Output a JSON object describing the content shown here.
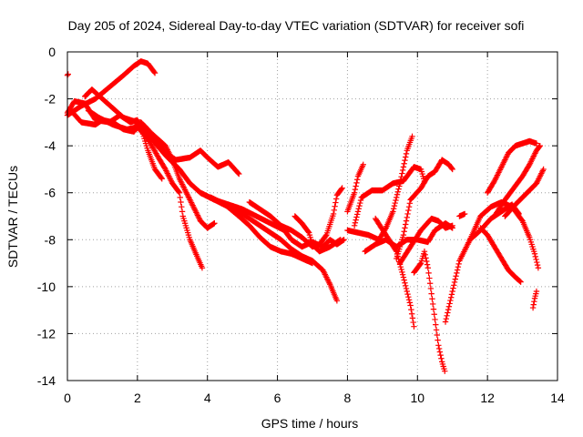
{
  "chart_data": {
    "type": "scatter",
    "title": "Day 205 of 2024, Sidereal Day-to-day VTEC variation (SDTVAR) for receiver sofi",
    "xlabel": "GPS time / hours",
    "ylabel": "SDTVAR / TECUs",
    "xlim": [
      0,
      14
    ],
    "ylim": [
      -14,
      0
    ],
    "xticks": [
      0,
      2,
      4,
      6,
      8,
      10,
      12,
      14
    ],
    "yticks": [
      0,
      -2,
      -4,
      -6,
      -8,
      -10,
      -12,
      -14
    ],
    "grid": true,
    "legend": "none",
    "marker": "+",
    "color": "#ff0000",
    "tracks": [
      [
        [
          0.0,
          -1.0
        ],
        [
          0.02,
          -0.95
        ]
      ],
      [
        [
          0.0,
          -2.7
        ],
        [
          0.4,
          -2.3
        ],
        [
          0.8,
          -2.0
        ],
        [
          1.2,
          -1.5
        ],
        [
          1.6,
          -1.0
        ],
        [
          1.9,
          -0.6
        ],
        [
          2.1,
          -0.4
        ],
        [
          2.3,
          -0.5
        ],
        [
          2.5,
          -0.9
        ]
      ],
      [
        [
          0.0,
          -2.6
        ],
        [
          0.2,
          -2.1
        ],
        [
          0.5,
          -2.2
        ],
        [
          0.8,
          -2.9
        ],
        [
          1.2,
          -3.0
        ],
        [
          1.5,
          -2.7
        ],
        [
          1.8,
          -3.0
        ],
        [
          2.0,
          -2.9
        ],
        [
          2.1,
          -3.2
        ],
        [
          2.3,
          -4.2
        ],
        [
          2.5,
          -5.0
        ],
        [
          2.7,
          -5.4
        ]
      ],
      [
        [
          0.1,
          -2.5
        ],
        [
          0.4,
          -3.0
        ],
        [
          0.8,
          -3.1
        ],
        [
          1.0,
          -2.9
        ],
        [
          1.3,
          -3.0
        ],
        [
          1.6,
          -3.3
        ],
        [
          1.9,
          -3.4
        ],
        [
          2.1,
          -3.0
        ],
        [
          2.3,
          -3.3
        ],
        [
          2.5,
          -3.7
        ],
        [
          2.8,
          -4.3
        ],
        [
          3.1,
          -4.6
        ],
        [
          3.5,
          -4.5
        ],
        [
          3.8,
          -4.2
        ],
        [
          4.0,
          -4.5
        ],
        [
          4.3,
          -4.9
        ],
        [
          4.6,
          -4.7
        ],
        [
          4.9,
          -5.2
        ]
      ],
      [
        [
          0.5,
          -1.9
        ],
        [
          0.7,
          -1.6
        ],
        [
          1.0,
          -2.0
        ],
        [
          1.3,
          -2.4
        ],
        [
          1.6,
          -2.8
        ],
        [
          2.0,
          -3.0
        ],
        [
          2.2,
          -3.2
        ],
        [
          2.5,
          -3.6
        ],
        [
          2.8,
          -4.0
        ],
        [
          3.0,
          -4.6
        ],
        [
          3.2,
          -5.4
        ],
        [
          3.4,
          -6.0
        ],
        [
          3.6,
          -6.6
        ],
        [
          3.8,
          -7.2
        ],
        [
          4.0,
          -7.5
        ],
        [
          4.2,
          -7.3
        ]
      ],
      [
        [
          0.6,
          -2.5
        ],
        [
          0.9,
          -2.8
        ],
        [
          1.3,
          -3.1
        ],
        [
          1.7,
          -3.3
        ],
        [
          2.0,
          -3.2
        ],
        [
          2.3,
          -3.7
        ],
        [
          2.6,
          -4.5
        ],
        [
          2.8,
          -5.0
        ],
        [
          3.0,
          -5.6
        ],
        [
          3.2,
          -6.0
        ],
        [
          3.3,
          -7.0
        ],
        [
          3.5,
          -8.0
        ],
        [
          3.7,
          -8.7
        ],
        [
          3.85,
          -9.2
        ]
      ],
      [
        [
          2.0,
          -3.1
        ],
        [
          2.4,
          -3.7
        ],
        [
          2.8,
          -4.4
        ],
        [
          3.2,
          -5.0
        ],
        [
          3.5,
          -5.6
        ],
        [
          3.8,
          -6.0
        ],
        [
          4.2,
          -6.3
        ],
        [
          4.6,
          -6.6
        ],
        [
          5.0,
          -6.9
        ],
        [
          5.4,
          -7.3
        ],
        [
          5.8,
          -7.7
        ],
        [
          6.1,
          -8.0
        ],
        [
          6.4,
          -8.4
        ],
        [
          6.7,
          -8.7
        ],
        [
          7.0,
          -8.9
        ],
        [
          7.3,
          -9.3
        ],
        [
          7.5,
          -9.9
        ],
        [
          7.7,
          -10.6
        ]
      ],
      [
        [
          3.8,
          -6.0
        ],
        [
          4.2,
          -6.3
        ],
        [
          4.6,
          -6.5
        ],
        [
          5.0,
          -6.7
        ],
        [
          5.4,
          -7.0
        ],
        [
          5.8,
          -7.3
        ],
        [
          6.2,
          -7.6
        ],
        [
          6.4,
          -8.0
        ],
        [
          6.7,
          -8.3
        ],
        [
          7.0,
          -8.1
        ],
        [
          7.3,
          -8.3
        ],
        [
          7.5,
          -8.0
        ],
        [
          7.7,
          -8.2
        ],
        [
          7.9,
          -8.0
        ]
      ],
      [
        [
          4.1,
          -6.2
        ],
        [
          4.5,
          -6.5
        ],
        [
          4.9,
          -7.0
        ],
        [
          5.2,
          -7.4
        ],
        [
          5.5,
          -7.9
        ],
        [
          5.8,
          -8.3
        ],
        [
          6.1,
          -8.5
        ],
        [
          6.4,
          -8.6
        ],
        [
          6.7,
          -8.8
        ],
        [
          7.0,
          -9.0
        ]
      ],
      [
        [
          5.2,
          -6.4
        ],
        [
          5.5,
          -6.7
        ],
        [
          5.8,
          -7.0
        ],
        [
          6.1,
          -7.4
        ],
        [
          6.4,
          -7.6
        ],
        [
          6.7,
          -7.9
        ],
        [
          7.0,
          -8.3
        ],
        [
          7.2,
          -8.2
        ],
        [
          7.4,
          -7.8
        ],
        [
          7.6,
          -6.9
        ],
        [
          7.7,
          -6.1
        ],
        [
          7.85,
          -5.8
        ]
      ],
      [
        [
          6.5,
          -7.0
        ],
        [
          6.7,
          -7.3
        ],
        [
          6.9,
          -7.7
        ],
        [
          7.0,
          -8.2
        ],
        [
          7.2,
          -8.5
        ],
        [
          7.5,
          -8.3
        ],
        [
          7.8,
          -8.0
        ]
      ],
      [
        [
          8.0,
          -7.6
        ],
        [
          8.3,
          -7.7
        ],
        [
          8.6,
          -7.8
        ],
        [
          8.9,
          -8.0
        ],
        [
          9.1,
          -7.5
        ],
        [
          9.3,
          -6.8
        ],
        [
          9.5,
          -5.6
        ],
        [
          9.7,
          -4.2
        ],
        [
          9.85,
          -3.6
        ]
      ],
      [
        [
          8.0,
          -6.8
        ],
        [
          8.2,
          -6.0
        ],
        [
          8.3,
          -5.3
        ],
        [
          8.45,
          -4.8
        ]
      ],
      [
        [
          8.2,
          -7.4
        ],
        [
          8.4,
          -6.2
        ],
        [
          8.7,
          -5.9
        ],
        [
          9.0,
          -5.9
        ],
        [
          9.3,
          -5.6
        ],
        [
          9.6,
          -5.5
        ],
        [
          9.9,
          -4.9
        ],
        [
          10.1,
          -5.0
        ],
        [
          10.2,
          -5.5
        ]
      ],
      [
        [
          8.8,
          -7.1
        ],
        [
          9.1,
          -7.8
        ],
        [
          9.4,
          -8.5
        ],
        [
          9.6,
          -9.6
        ],
        [
          9.8,
          -10.8
        ],
        [
          9.9,
          -11.7
        ]
      ],
      [
        [
          8.5,
          -8.5
        ],
        [
          8.8,
          -8.2
        ],
        [
          9.1,
          -8.0
        ],
        [
          9.4,
          -8.3
        ],
        [
          9.7,
          -8.0
        ],
        [
          10.0,
          -8.0
        ],
        [
          10.3,
          -8.1
        ],
        [
          10.5,
          -7.6
        ],
        [
          10.8,
          -7.3
        ],
        [
          11.0,
          -7.5
        ]
      ],
      [
        [
          9.4,
          -8.8
        ],
        [
          9.6,
          -7.8
        ],
        [
          9.8,
          -6.3
        ],
        [
          10.1,
          -5.8
        ],
        [
          10.3,
          -5.3
        ],
        [
          10.5,
          -5.1
        ],
        [
          10.7,
          -4.6
        ],
        [
          10.9,
          -4.8
        ],
        [
          11.0,
          -5.0
        ]
      ],
      [
        [
          9.5,
          -9.0
        ],
        [
          9.8,
          -8.3
        ],
        [
          10.1,
          -7.6
        ],
        [
          10.4,
          -7.1
        ],
        [
          10.6,
          -7.2
        ],
        [
          10.8,
          -7.5
        ],
        [
          11.0,
          -7.4
        ]
      ],
      [
        [
          9.9,
          -9.4
        ],
        [
          10.1,
          -9.0
        ],
        [
          10.2,
          -8.5
        ],
        [
          10.3,
          -9.2
        ],
        [
          10.4,
          -10.3
        ],
        [
          10.5,
          -11.4
        ],
        [
          10.6,
          -12.5
        ],
        [
          10.7,
          -13.2
        ],
        [
          10.78,
          -13.6
        ]
      ],
      [
        [
          11.2,
          -7.0
        ],
        [
          11.35,
          -6.9
        ]
      ],
      [
        [
          10.8,
          -11.5
        ],
        [
          11.0,
          -10.2
        ],
        [
          11.2,
          -8.9
        ],
        [
          11.5,
          -8.0
        ],
        [
          11.8,
          -7.6
        ],
        [
          12.1,
          -7.1
        ],
        [
          12.4,
          -6.8
        ],
        [
          12.7,
          -6.5
        ],
        [
          12.9,
          -6.9
        ]
      ],
      [
        [
          11.5,
          -8.0
        ],
        [
          11.8,
          -7.0
        ],
        [
          12.1,
          -6.6
        ],
        [
          12.4,
          -6.4
        ],
        [
          12.7,
          -6.6
        ],
        [
          13.0,
          -7.2
        ],
        [
          13.2,
          -7.9
        ],
        [
          13.35,
          -8.6
        ],
        [
          13.45,
          -9.2
        ]
      ],
      [
        [
          11.8,
          -7.5
        ],
        [
          12.0,
          -7.8
        ],
        [
          12.2,
          -8.3
        ],
        [
          12.4,
          -8.8
        ],
        [
          12.6,
          -9.3
        ],
        [
          12.8,
          -9.6
        ],
        [
          12.95,
          -9.8
        ]
      ],
      [
        [
          12.0,
          -6.0
        ],
        [
          12.2,
          -5.5
        ],
        [
          12.4,
          -4.9
        ],
        [
          12.6,
          -4.3
        ],
        [
          12.8,
          -4.0
        ],
        [
          13.0,
          -3.9
        ],
        [
          13.2,
          -3.8
        ],
        [
          13.4,
          -3.9
        ]
      ],
      [
        [
          12.2,
          -7.0
        ],
        [
          12.5,
          -6.3
        ],
        [
          12.8,
          -5.7
        ],
        [
          13.0,
          -5.3
        ],
        [
          13.2,
          -4.8
        ],
        [
          13.4,
          -4.2
        ],
        [
          13.5,
          -4.0
        ]
      ],
      [
        [
          12.5,
          -7.0
        ],
        [
          12.8,
          -6.5
        ],
        [
          13.0,
          -6.2
        ],
        [
          13.2,
          -5.9
        ],
        [
          13.4,
          -5.6
        ],
        [
          13.5,
          -5.3
        ],
        [
          13.6,
          -5.0
        ]
      ],
      [
        [
          13.3,
          -10.9
        ],
        [
          13.35,
          -10.5
        ],
        [
          13.4,
          -10.2
        ]
      ]
    ]
  }
}
